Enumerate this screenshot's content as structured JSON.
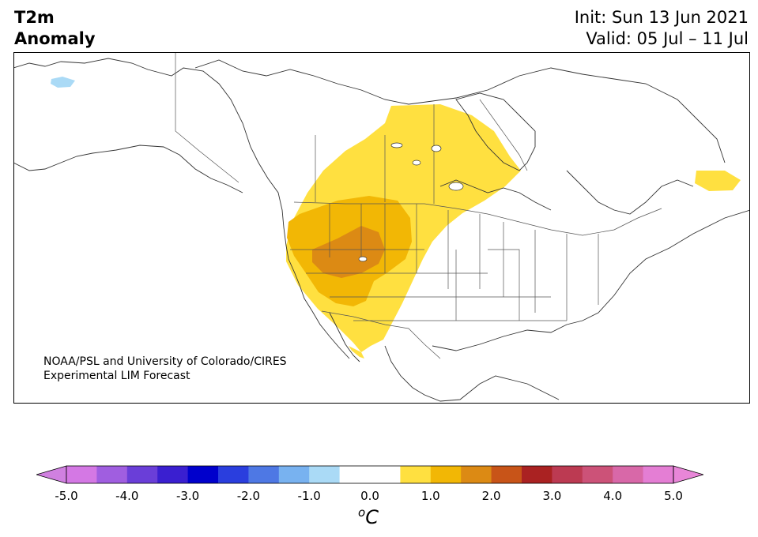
{
  "title": {
    "line1": "T2m",
    "line2": "Anomaly",
    "init": "Init: Sun 13 Jun 2021",
    "valid": "Valid: 05 Jul – 11 Jul"
  },
  "credit": {
    "line1": "NOAA/PSL and University of Colorado/CIRES",
    "line2": "Experimental LIM Forecast"
  },
  "map": {
    "region": "North America",
    "anomaly_regions": [
      {
        "area": "Western Canada / Northern Plains",
        "level": "0.5 to 1.0"
      },
      {
        "area": "Great Basin / Northern Rockies",
        "level": "1.0 to 1.5"
      },
      {
        "area": "Idaho / Utah / Nevada core",
        "level": "1.5 to 2.0"
      },
      {
        "area": "Labrador / Newfoundland",
        "level": "0.5 to 1.0"
      },
      {
        "area": "Northern Alaska coast",
        "level": "-1.0 to -0.5"
      }
    ]
  },
  "colorbar": {
    "units": "C",
    "units_sup": "o",
    "tick_labels": [
      "-5.0",
      "-4.0",
      "-3.0",
      "-2.0",
      "-1.0",
      "0.0",
      "1.0",
      "2.0",
      "3.0",
      "4.0",
      "5.0"
    ],
    "low_extend_color": "#d080e0",
    "high_extend_color": "#e886d8",
    "colors": [
      "#d478e4",
      "#a05ee0",
      "#6a3ed8",
      "#3a1fd0",
      "#0000cc",
      "#2a3ede",
      "#4e78e4",
      "#78b2f0",
      "#aadaf6",
      "#ffffff",
      "#ffffff",
      "#ffe040",
      "#f2b705",
      "#dc8a14",
      "#c85418",
      "#aa2222",
      "#bc3a52",
      "#cc5278",
      "#d868a8",
      "#e47ed4"
    ]
  }
}
